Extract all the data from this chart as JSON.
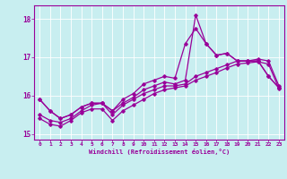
{
  "xlabel": "Windchill (Refroidissement éolien,°C)",
  "background_color": "#c8eef0",
  "line_color": "#990099",
  "xlim": [
    -0.5,
    23.5
  ],
  "ylim": [
    14.85,
    18.35
  ],
  "yticks": [
    15,
    16,
    17,
    18
  ],
  "xticks": [
    0,
    1,
    2,
    3,
    4,
    5,
    6,
    7,
    8,
    9,
    10,
    11,
    12,
    13,
    14,
    15,
    16,
    17,
    18,
    19,
    20,
    21,
    22,
    23
  ],
  "hours": [
    0,
    1,
    2,
    3,
    4,
    5,
    6,
    7,
    8,
    9,
    10,
    11,
    12,
    13,
    14,
    15,
    16,
    17,
    18,
    19,
    20,
    21,
    22,
    23
  ],
  "line1": [
    15.9,
    15.6,
    15.4,
    15.5,
    15.7,
    15.8,
    15.8,
    15.6,
    15.8,
    15.95,
    16.15,
    16.25,
    16.35,
    16.3,
    16.4,
    18.1,
    17.35,
    17.05,
    17.1,
    16.9,
    16.9,
    16.9,
    16.5,
    16.2
  ],
  "line2": [
    15.9,
    15.6,
    15.4,
    15.5,
    15.7,
    15.8,
    15.8,
    15.6,
    15.9,
    16.05,
    16.3,
    16.4,
    16.5,
    16.45,
    17.35,
    17.75,
    17.35,
    17.05,
    17.1,
    16.9,
    16.9,
    16.9,
    16.5,
    16.2
  ],
  "line3": [
    15.5,
    15.35,
    15.3,
    15.4,
    15.6,
    15.75,
    15.8,
    15.5,
    15.75,
    15.9,
    16.05,
    16.15,
    16.25,
    16.25,
    16.3,
    16.5,
    16.6,
    16.7,
    16.8,
    16.9,
    16.9,
    16.95,
    16.9,
    16.25
  ],
  "line4": [
    15.4,
    15.25,
    15.2,
    15.35,
    15.55,
    15.65,
    15.65,
    15.35,
    15.6,
    15.75,
    15.9,
    16.05,
    16.15,
    16.2,
    16.25,
    16.4,
    16.5,
    16.6,
    16.72,
    16.82,
    16.85,
    16.88,
    16.82,
    16.18
  ]
}
